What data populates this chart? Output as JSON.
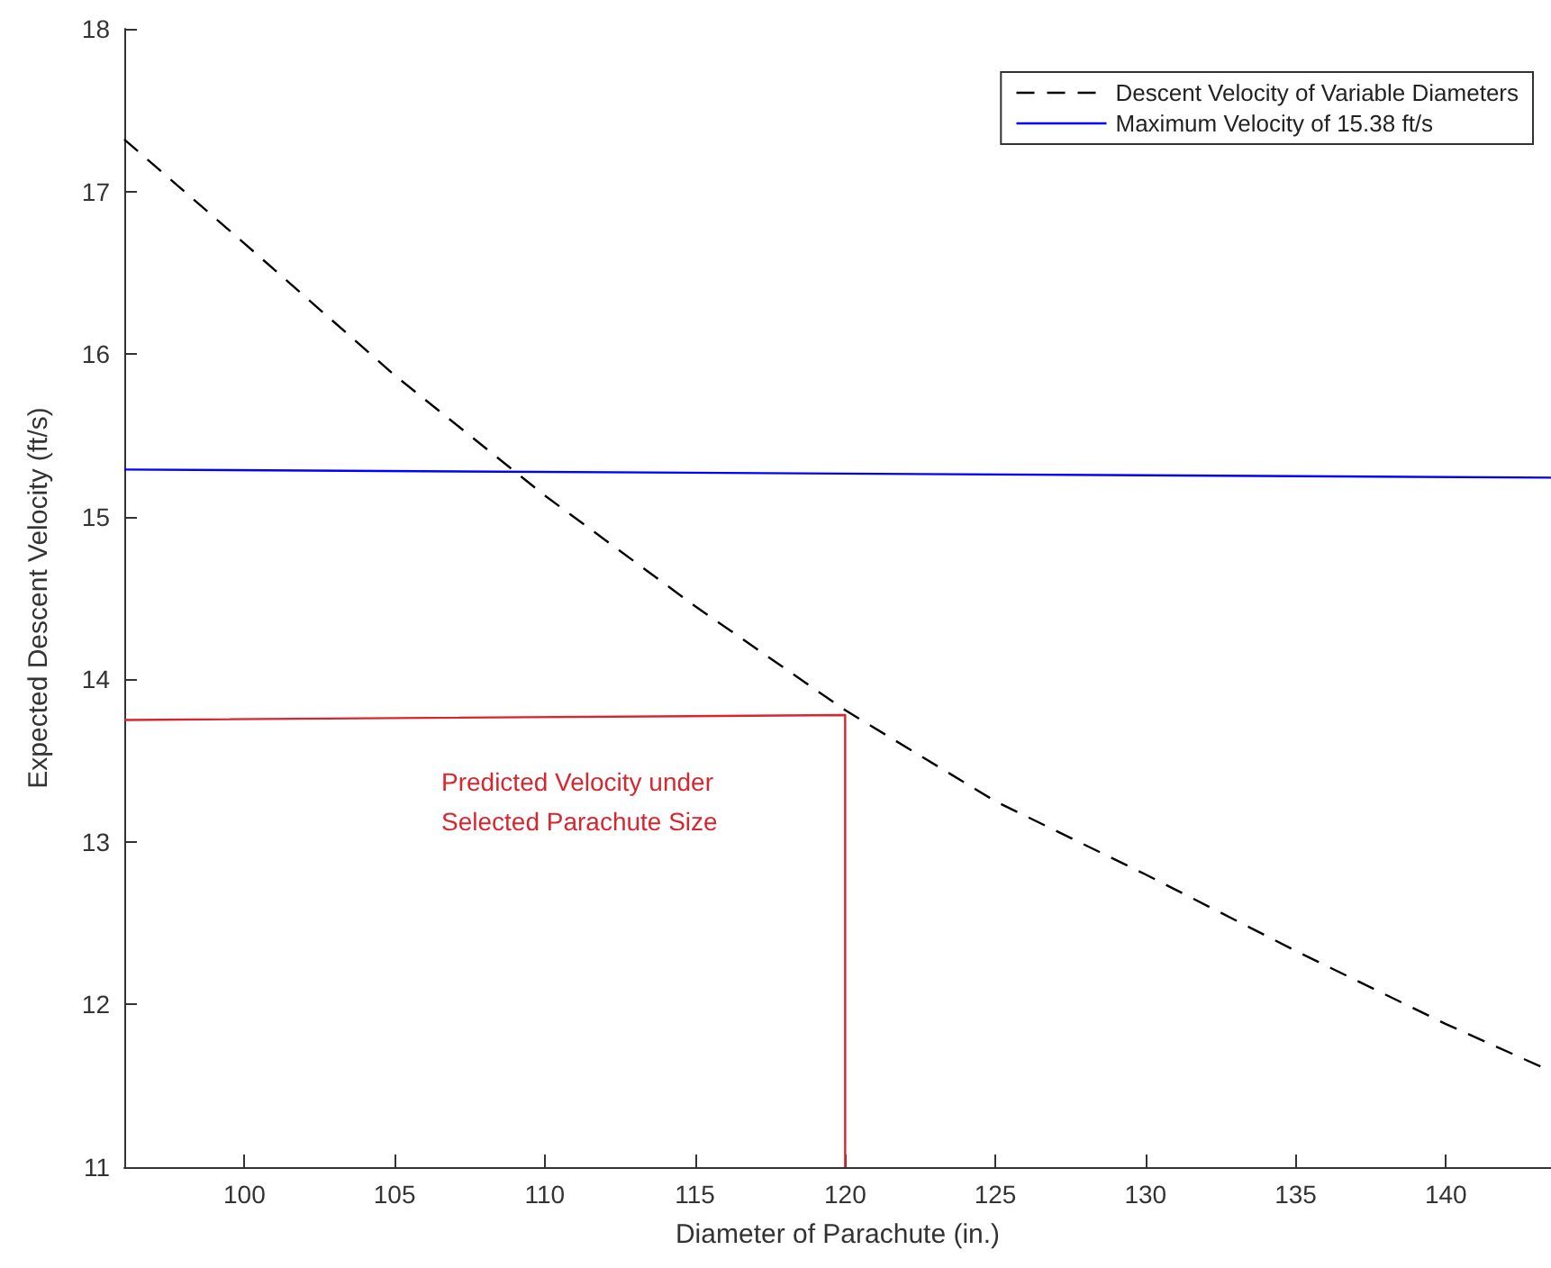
{
  "chart_data": {
    "type": "line",
    "xlabel": "Diameter of Parachute (in.)",
    "ylabel": "Expected Descent Velocity (ft/s)",
    "xlim": [
      96,
      143.5
    ],
    "xticks": [
      100,
      105,
      110,
      115,
      120,
      125,
      130,
      135,
      140
    ],
    "ylim": [
      11,
      18
    ],
    "yticks": [
      11,
      12,
      13,
      14,
      15,
      16,
      17,
      18
    ],
    "grid": false,
    "legend": "top right",
    "marker": "none",
    "series": [
      {
        "name": "Descent Velocity of Variable Diameters",
        "color": "#000000",
        "line_style": "dashed",
        "x": [
          96,
          100,
          105,
          110,
          115,
          120,
          125,
          130,
          135,
          140,
          143.5
        ],
        "values": [
          17.32,
          16.68,
          15.87,
          15.13,
          14.45,
          13.81,
          13.25,
          12.8,
          12.33,
          11.88,
          11.59
        ]
      },
      {
        "name": "Maximum Velocity of 15.38 ft/s",
        "color": "#0000ff",
        "line_style": "solid",
        "x": [
          96,
          143.5
        ],
        "values": [
          15.29,
          15.24
        ]
      },
      {
        "color": "#d9262e",
        "line_style": "solid",
        "x": [
          96,
          120,
          120
        ],
        "values": [
          13.75,
          13.78,
          11
        ]
      }
    ],
    "annotations": [
      "Predicted Velocity under\nSelected Parachute Size"
    ]
  }
}
